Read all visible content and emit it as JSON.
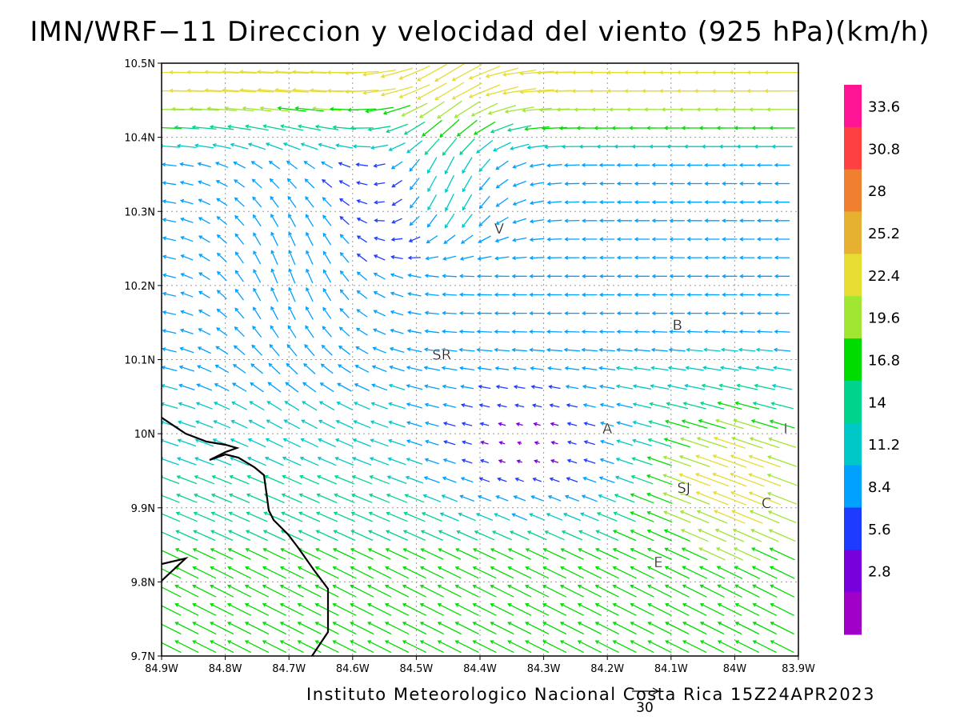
{
  "title": "IMN/WRF−11 Direccion y velocidad del viento (925 hPa)(km/h)",
  "footer": "Instituto Meteorologico Nacional Costa Rica 15Z24APR2023",
  "reference_vector_label": "30",
  "map": {
    "lat_range": [
      9.7,
      10.5
    ],
    "lon_range": [
      -84.9,
      -83.9
    ],
    "lat_ticks": [
      "10.5N",
      "10.4N",
      "10.3N",
      "10.2N",
      "10.1N",
      "10N",
      "9.9N",
      "9.8N",
      "9.7N"
    ],
    "lon_ticks": [
      "84.9W",
      "84.8W",
      "84.7W",
      "84.6W",
      "84.5W",
      "84.4W",
      "84.3W",
      "84.2W",
      "84.1W",
      "84W",
      "83.9W"
    ],
    "grid": "dotted",
    "places": [
      {
        "label": "V",
        "lon": -84.37,
        "lat": 10.27
      },
      {
        "label": "B",
        "lon": -84.09,
        "lat": 10.14
      },
      {
        "label": "SR",
        "lon": -84.46,
        "lat": 10.1
      },
      {
        "label": "A",
        "lon": -84.2,
        "lat": 10.0
      },
      {
        "label": "I",
        "lon": -83.92,
        "lat": 10.0
      },
      {
        "label": "SJ",
        "lon": -84.08,
        "lat": 9.92
      },
      {
        "label": "C",
        "lon": -83.95,
        "lat": 9.9
      },
      {
        "label": "E",
        "lon": -84.12,
        "lat": 9.82
      }
    ]
  },
  "colorbar": {
    "labels": [
      "33.6",
      "30.8",
      "28",
      "25.2",
      "22.4",
      "19.6",
      "16.8",
      "14",
      "11.2",
      "8.4",
      "5.6",
      "2.8"
    ],
    "colors": [
      "#ff1493",
      "#ff4040",
      "#f08030",
      "#e6b030",
      "#e6dc32",
      "#a0e632",
      "#00dc00",
      "#00d48c",
      "#00c8c8",
      "#00a0ff",
      "#1e3cff",
      "#7800dc",
      "#a000c8"
    ]
  }
}
